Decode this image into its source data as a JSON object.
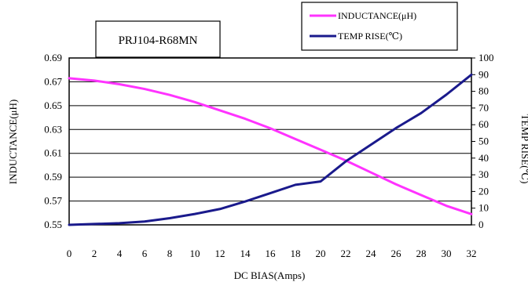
{
  "chart_data": {
    "type": "line",
    "title": "PRJ104-R68MN",
    "xlabel": "DC BIAS(Amps)",
    "ylabel_left": "INDUCTANCE(μH)",
    "ylabel_right": "TEMP RISE(℃)",
    "xlim": [
      0,
      32
    ],
    "x_ticks": [
      "0",
      "2",
      "4",
      "6",
      "8",
      "10",
      "12",
      "14",
      "16",
      "18",
      "20",
      "22",
      "24",
      "26",
      "28",
      "30",
      "32"
    ],
    "y_left_ticks": [
      "0.55",
      "0.57",
      "0.59",
      "0.61",
      "0.63",
      "0.65",
      "0.67",
      "0.69"
    ],
    "y_right_ticks": [
      "0",
      "10",
      "20",
      "30",
      "40",
      "50",
      "60",
      "70",
      "80",
      "90",
      "100"
    ],
    "y_left_range": [
      0.55,
      0.69
    ],
    "y_right_range": [
      0,
      100
    ],
    "grid": true,
    "legend_position": "top-right",
    "colors": {
      "inductance": "#ff33ff",
      "temp": "#1a1a8c"
    },
    "series": [
      {
        "name": "INDUCTANCE(μH)",
        "axis": "left",
        "x": [
          0,
          2,
          4,
          6,
          8,
          10,
          12,
          14,
          16,
          18,
          20,
          22,
          24,
          26,
          28,
          30,
          32
        ],
        "values": [
          0.673,
          0.671,
          0.668,
          0.664,
          0.659,
          0.653,
          0.646,
          0.639,
          0.631,
          0.622,
          0.613,
          0.604,
          0.594,
          0.584,
          0.575,
          0.566,
          0.559
        ]
      },
      {
        "name": "TEMP RISE(℃)",
        "axis": "right",
        "x": [
          0,
          2,
          4,
          6,
          8,
          10,
          12,
          14,
          16,
          18,
          20,
          22,
          24,
          26,
          28,
          30,
          32
        ],
        "values": [
          0,
          0.5,
          1,
          2,
          4,
          6.5,
          9.5,
          14,
          19,
          24,
          26,
          38,
          48,
          58,
          67,
          78,
          90
        ]
      }
    ]
  }
}
